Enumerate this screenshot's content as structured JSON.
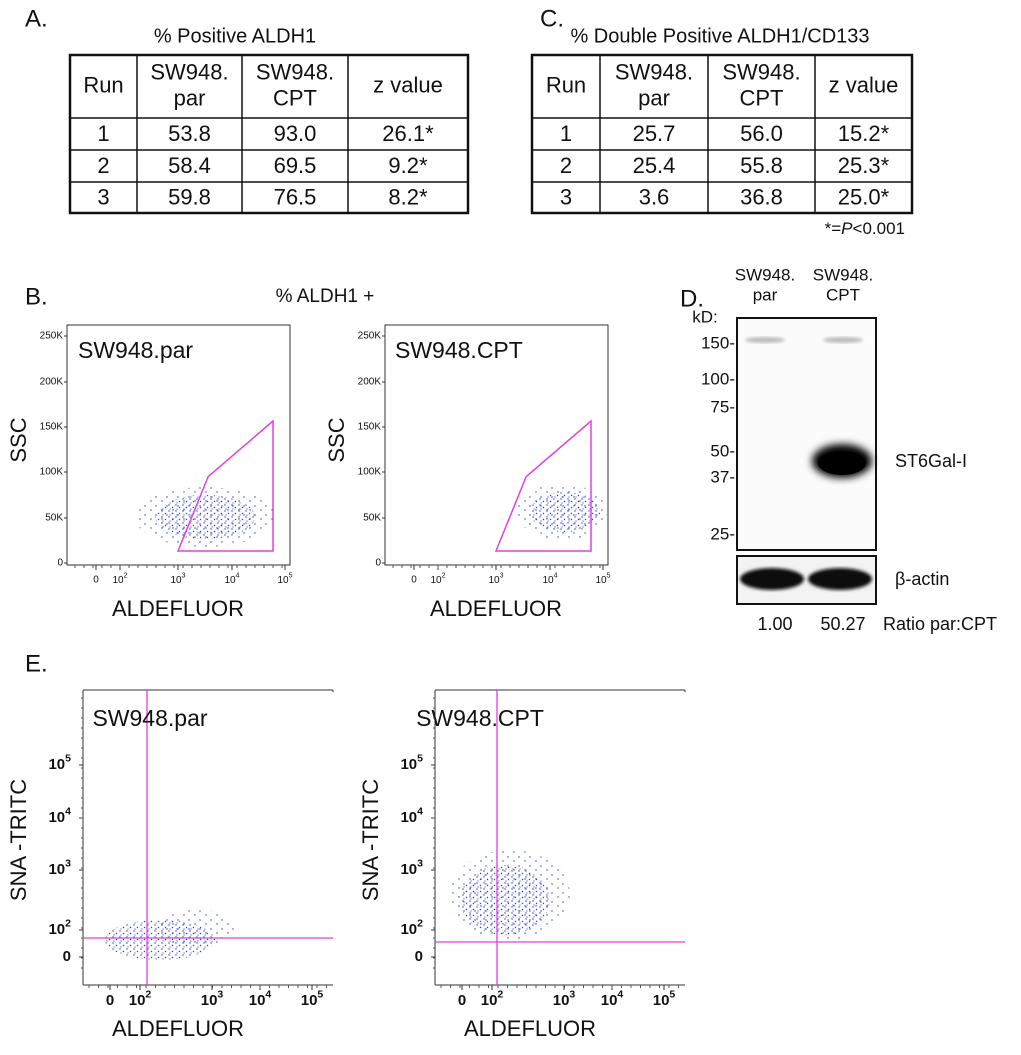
{
  "panel_a": {
    "label": "A.",
    "title": "% Positive ALDH1",
    "header": [
      [
        "Run"
      ],
      [
        "SW948.",
        "par"
      ],
      [
        "SW948.",
        "CPT"
      ],
      [
        "z value"
      ]
    ],
    "rows": [
      [
        "1",
        "53.8",
        "93.0",
        "26.1*"
      ],
      [
        "2",
        "58.4",
        "69.5",
        "9.2*"
      ],
      [
        "3",
        "59.8",
        "76.5",
        "8.2*"
      ]
    ]
  },
  "panel_c": {
    "label": "C.",
    "title": "% Double Positive ALDH1/CD133",
    "header": [
      [
        "Run"
      ],
      [
        "SW948.",
        "par"
      ],
      [
        "SW948.",
        "CPT"
      ],
      [
        "z value"
      ]
    ],
    "rows": [
      [
        "1",
        "25.7",
        "56.0",
        "15.2*"
      ],
      [
        "2",
        "25.4",
        "55.8",
        "25.3*"
      ],
      [
        "3",
        "3.6",
        "36.8",
        "25.0*"
      ]
    ],
    "footnote": [
      "*=",
      "P",
      "<0.001"
    ]
  },
  "panel_b": {
    "label": "B.",
    "title": "% ALDH1 +",
    "y_label": "SSC",
    "x_label": "ALDEFLUOR",
    "yticks": [
      "250K",
      "200K",
      "150K",
      "100K",
      "50K",
      "0"
    ],
    "xticks": [
      "0",
      {
        "base": "10",
        "exp": "2"
      },
      {
        "base": "10",
        "exp": "3"
      },
      {
        "base": "10",
        "exp": "4"
      },
      {
        "base": "10",
        "exp": "5"
      }
    ],
    "plots": [
      "SW948.par",
      "SW948.CPT"
    ]
  },
  "panel_d": {
    "label": "D.",
    "kd_label": "kD:",
    "lanes": [
      [
        "SW948.",
        "par"
      ],
      [
        "SW948.",
        "CPT"
      ]
    ],
    "markers": [
      "150-",
      "100-",
      "75-",
      "50-",
      "37-",
      "25-"
    ],
    "band_label": "ST6Gal-I",
    "loading_label": "β-actin",
    "ratios": [
      "1.00",
      "50.27"
    ],
    "ratio_label": "Ratio par:CPT"
  },
  "panel_e": {
    "label": "E.",
    "y_label": "SNA -TRITC",
    "x_label": "ALDEFLUOR",
    "yticks": [
      {
        "base": "10",
        "exp": "5"
      },
      {
        "base": "10",
        "exp": "4"
      },
      {
        "base": "10",
        "exp": "3"
      },
      {
        "base": "10",
        "exp": "2"
      },
      "0"
    ],
    "xticks": [
      "0",
      {
        "base": "10",
        "exp": "2"
      },
      {
        "base": "10",
        "exp": "3"
      },
      {
        "base": "10",
        "exp": "4"
      },
      {
        "base": "10",
        "exp": "5"
      }
    ],
    "plots": [
      "SW948.par",
      "SW948.CPT"
    ]
  }
}
